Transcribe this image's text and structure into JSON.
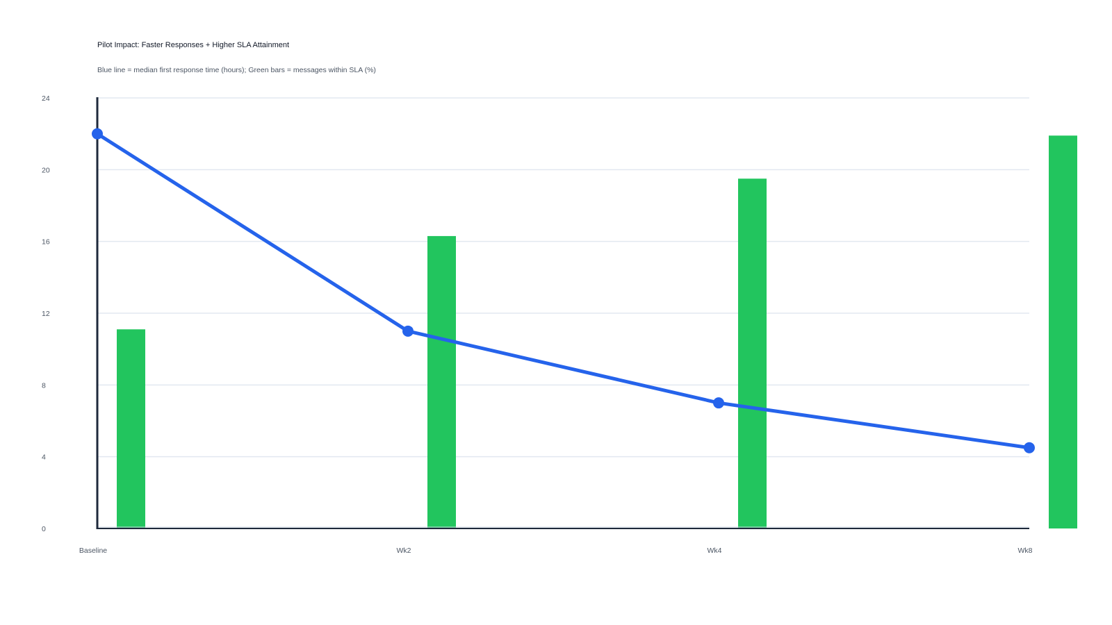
{
  "chart_data": {
    "type": "bar+line",
    "title": "Pilot Impact: Faster Responses + Higher SLA Attainment",
    "subtitle": "Blue line = median first response time (hours); Green bars = messages within SLA (%)",
    "categories": [
      "Baseline",
      "Wk2",
      "Wk4",
      "Wk8"
    ],
    "ylim": [
      0,
      24
    ],
    "yticks": [
      0,
      4,
      8,
      12,
      16,
      20,
      24
    ],
    "grid": true,
    "series": [
      {
        "type": "line",
        "color": "#2563eb",
        "values": [
          22,
          11,
          7,
          4.5
        ]
      },
      {
        "type": "bar",
        "color": "#22c55e",
        "values": [
          11.1,
          16.3,
          19.5,
          21.9
        ]
      }
    ]
  }
}
